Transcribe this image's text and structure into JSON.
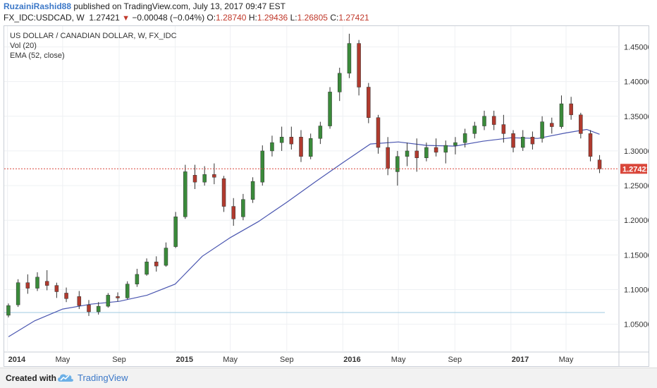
{
  "header": {
    "author": "RuzainiRashid88",
    "published_text": "published on TradingView.com, July 13, 2017 09:47 EST",
    "symbol": "FX_IDC:USDCAD, W",
    "last": "1.27421",
    "change_arrow": "▼",
    "change": "−0.00048 (−0.04%)",
    "o_label": "O:",
    "o_value": "1.28740",
    "h_label": "H:",
    "h_value": "1.29436",
    "l_label": "L:",
    "l_value": "1.26805",
    "c_label": "C:",
    "c_value": "1.27421"
  },
  "legend": {
    "title": "US DOLLAR / CANADIAN DOLLAR, W, FX_IDC",
    "vol": "Vol (20)",
    "ema": "EMA (52, close)"
  },
  "footer": {
    "created_with": "Created with",
    "brand": "TradingView",
    "logo_icon": "tradingview-cloud-icon"
  },
  "colors": {
    "up": "#3a8a3a",
    "down": "#b03a2e",
    "ema": "#4a56b0",
    "last_line": "#d9463a",
    "support_line": "#9fcbe0",
    "grid": "#eef0f3"
  },
  "chart_data": {
    "type": "candlestick",
    "ylim": [
      1.01,
      1.48
    ],
    "y_ticks": [
      "1.45000",
      "1.40000",
      "1.35000",
      "1.30000",
      "1.25000",
      "1.20000",
      "1.15000",
      "1.10000",
      "1.05000"
    ],
    "x_ticks": [
      "2014",
      "May",
      "Sep",
      "2015",
      "May",
      "Sep",
      "2016",
      "May",
      "Sep",
      "2017",
      "May"
    ],
    "last_price_label": "1.27421",
    "last_price": 1.27421,
    "support_level": 1.067,
    "ema_points": [
      [
        "2014-01-03",
        1.032
      ],
      [
        "2014-03-01",
        1.055
      ],
      [
        "2014-05-01",
        1.072
      ],
      [
        "2014-07-01",
        1.079
      ],
      [
        "2014-09-01",
        1.083
      ],
      [
        "2014-11-01",
        1.092
      ],
      [
        "2015-01-01",
        1.108
      ],
      [
        "2015-03-01",
        1.148
      ],
      [
        "2015-05-01",
        1.175
      ],
      [
        "2015-07-01",
        1.198
      ],
      [
        "2015-09-01",
        1.226
      ],
      [
        "2015-11-01",
        1.255
      ],
      [
        "2016-01-01",
        1.283
      ],
      [
        "2016-03-01",
        1.31
      ],
      [
        "2016-05-01",
        1.313
      ],
      [
        "2016-07-01",
        1.308
      ],
      [
        "2016-09-01",
        1.307
      ],
      [
        "2016-11-01",
        1.314
      ],
      [
        "2017-01-01",
        1.319
      ],
      [
        "2017-03-01",
        1.318
      ],
      [
        "2017-05-01",
        1.326
      ],
      [
        "2017-06-15",
        1.331
      ],
      [
        "2017-07-13",
        1.324
      ]
    ],
    "ohlc": [
      [
        "2014-01-03",
        1.063,
        1.08,
        1.06,
        1.077
      ],
      [
        "2014-01-24",
        1.078,
        1.115,
        1.075,
        1.11
      ],
      [
        "2014-02-14",
        1.11,
        1.122,
        1.094,
        1.102
      ],
      [
        "2014-03-07",
        1.102,
        1.125,
        1.098,
        1.118
      ],
      [
        "2014-03-28",
        1.112,
        1.128,
        1.099,
        1.106
      ],
      [
        "2014-04-18",
        1.106,
        1.11,
        1.088,
        1.097
      ],
      [
        "2014-05-09",
        1.095,
        1.103,
        1.082,
        1.087
      ],
      [
        "2014-06-06",
        1.09,
        1.098,
        1.072,
        1.077
      ],
      [
        "2014-06-27",
        1.078,
        1.085,
        1.062,
        1.068
      ],
      [
        "2014-07-18",
        1.068,
        1.082,
        1.064,
        1.076
      ],
      [
        "2014-08-08",
        1.076,
        1.095,
        1.074,
        1.092
      ],
      [
        "2014-08-29",
        1.09,
        1.096,
        1.083,
        1.088
      ],
      [
        "2014-09-19",
        1.088,
        1.112,
        1.086,
        1.108
      ],
      [
        "2014-10-10",
        1.108,
        1.13,
        1.104,
        1.122
      ],
      [
        "2014-10-31",
        1.122,
        1.145,
        1.12,
        1.14
      ],
      [
        "2014-11-21",
        1.14,
        1.148,
        1.126,
        1.134
      ],
      [
        "2014-12-12",
        1.135,
        1.168,
        1.133,
        1.16
      ],
      [
        "2015-01-02",
        1.162,
        1.212,
        1.16,
        1.205
      ],
      [
        "2015-01-23",
        1.205,
        1.28,
        1.202,
        1.27
      ],
      [
        "2015-02-13",
        1.265,
        1.28,
        1.245,
        1.255
      ],
      [
        "2015-03-06",
        1.255,
        1.278,
        1.25,
        1.266
      ],
      [
        "2015-03-27",
        1.266,
        1.282,
        1.252,
        1.262
      ],
      [
        "2015-04-17",
        1.26,
        1.264,
        1.212,
        1.22
      ],
      [
        "2015-05-08",
        1.22,
        1.232,
        1.192,
        1.202
      ],
      [
        "2015-05-29",
        1.205,
        1.238,
        1.2,
        1.23
      ],
      [
        "2015-06-19",
        1.23,
        1.262,
        1.225,
        1.256
      ],
      [
        "2015-07-10",
        1.255,
        1.308,
        1.25,
        1.3
      ],
      [
        "2015-07-31",
        1.3,
        1.322,
        1.292,
        1.312
      ],
      [
        "2015-08-21",
        1.312,
        1.335,
        1.3,
        1.32
      ],
      [
        "2015-09-11",
        1.32,
        1.335,
        1.302,
        1.31
      ],
      [
        "2015-10-02",
        1.32,
        1.33,
        1.284,
        1.292
      ],
      [
        "2015-10-23",
        1.292,
        1.325,
        1.288,
        1.318
      ],
      [
        "2015-11-13",
        1.318,
        1.342,
        1.31,
        1.336
      ],
      [
        "2015-12-04",
        1.336,
        1.392,
        1.332,
        1.385
      ],
      [
        "2015-12-25",
        1.385,
        1.42,
        1.372,
        1.412
      ],
      [
        "2016-01-15",
        1.412,
        1.469,
        1.405,
        1.455
      ],
      [
        "2016-02-05",
        1.455,
        1.46,
        1.38,
        1.392
      ],
      [
        "2016-02-26",
        1.392,
        1.398,
        1.34,
        1.348
      ],
      [
        "2016-03-18",
        1.348,
        1.352,
        1.296,
        1.305
      ],
      [
        "2016-04-08",
        1.305,
        1.32,
        1.265,
        1.275
      ],
      [
        "2016-04-29",
        1.27,
        1.3,
        1.25,
        1.292
      ],
      [
        "2016-05-20",
        1.292,
        1.312,
        1.278,
        1.3
      ],
      [
        "2016-06-10",
        1.3,
        1.318,
        1.27,
        1.29
      ],
      [
        "2016-07-01",
        1.29,
        1.312,
        1.285,
        1.305
      ],
      [
        "2016-07-22",
        1.305,
        1.318,
        1.292,
        1.298
      ],
      [
        "2016-08-12",
        1.298,
        1.315,
        1.282,
        1.308
      ],
      [
        "2016-09-02",
        1.308,
        1.32,
        1.295,
        1.312
      ],
      [
        "2016-09-23",
        1.312,
        1.332,
        1.305,
        1.325
      ],
      [
        "2016-10-14",
        1.325,
        1.342,
        1.318,
        1.336
      ],
      [
        "2016-11-04",
        1.336,
        1.358,
        1.33,
        1.35
      ],
      [
        "2016-11-25",
        1.35,
        1.358,
        1.33,
        1.338
      ],
      [
        "2016-12-16",
        1.338,
        1.352,
        1.312,
        1.325
      ],
      [
        "2017-01-06",
        1.325,
        1.33,
        1.298,
        1.305
      ],
      [
        "2017-01-27",
        1.305,
        1.33,
        1.3,
        1.32
      ],
      [
        "2017-02-17",
        1.32,
        1.328,
        1.302,
        1.31
      ],
      [
        "2017-03-10",
        1.318,
        1.35,
        1.312,
        1.342
      ],
      [
        "2017-03-31",
        1.34,
        1.348,
        1.325,
        1.335
      ],
      [
        "2017-04-21",
        1.335,
        1.38,
        1.332,
        1.368
      ],
      [
        "2017-05-12",
        1.368,
        1.378,
        1.345,
        1.352
      ],
      [
        "2017-06-02",
        1.352,
        1.355,
        1.318,
        1.325
      ],
      [
        "2017-06-23",
        1.325,
        1.33,
        1.285,
        1.292
      ],
      [
        "2017-07-13",
        1.287,
        1.294,
        1.268,
        1.274
      ]
    ]
  }
}
